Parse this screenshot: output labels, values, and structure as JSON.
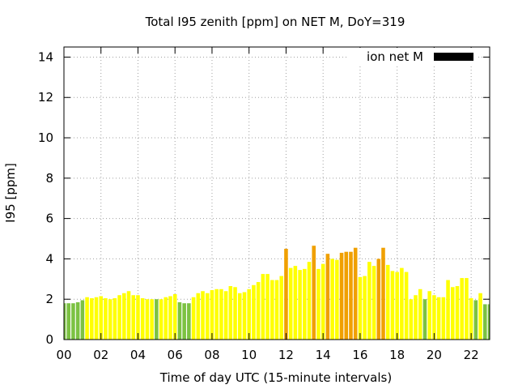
{
  "chart_data": {
    "type": "bar",
    "title": "Total I95 zenith [ppm] on NET M, DoY=319",
    "xlabel": "Time of day UTC (15-minute intervals)",
    "ylabel": "I95 [ppm]",
    "xlim": [
      0,
      23
    ],
    "ylim": [
      0,
      14.5
    ],
    "x_ticks": [
      "00",
      "02",
      "04",
      "06",
      "08",
      "10",
      "12",
      "14",
      "16",
      "18",
      "20",
      "22"
    ],
    "y_ticks": [
      "0",
      "2",
      "4",
      "6",
      "8",
      "10",
      "12",
      "14"
    ],
    "grid": true,
    "legend": {
      "label": "ion net M",
      "position": "top-right",
      "color": "#000000"
    },
    "colors": {
      "green": "#7cc242",
      "yellow": "#ffff00",
      "orange": "#f0a000"
    },
    "x_start_hour": 0,
    "interval_hours": 0.25,
    "values": [
      1.8,
      1.8,
      1.8,
      1.85,
      1.95,
      2.1,
      2.05,
      2.1,
      2.15,
      2.05,
      2.0,
      2.05,
      2.2,
      2.3,
      2.4,
      2.2,
      2.2,
      2.05,
      2.0,
      2.0,
      2.0,
      2.0,
      2.1,
      2.15,
      2.25,
      1.85,
      1.8,
      1.8,
      2.1,
      2.3,
      2.4,
      2.3,
      2.45,
      2.5,
      2.5,
      2.4,
      2.65,
      2.6,
      2.3,
      2.35,
      2.5,
      2.7,
      2.85,
      3.25,
      3.25,
      2.95,
      2.95,
      3.15,
      4.5,
      3.55,
      3.65,
      3.45,
      3.5,
      3.85,
      4.65,
      3.5,
      3.75,
      4.25,
      4.0,
      3.95,
      4.3,
      4.35,
      4.35,
      4.55,
      3.1,
      3.15,
      3.85,
      3.65,
      4.0,
      4.55,
      3.7,
      3.4,
      3.35,
      3.55,
      3.35,
      2.0,
      2.2,
      2.5,
      2.0,
      2.4,
      2.2,
      2.1,
      2.1,
      2.95,
      2.6,
      2.65,
      3.05,
      3.05,
      2.05,
      1.95,
      2.3,
      1.75,
      1.75,
      1.75
    ],
    "categories": [
      "G",
      "G",
      "G",
      "G",
      "G",
      "Y",
      "Y",
      "Y",
      "Y",
      "Y",
      "Y",
      "Y",
      "Y",
      "Y",
      "Y",
      "Y",
      "Y",
      "Y",
      "Y",
      "Y",
      "G",
      "Y",
      "Y",
      "Y",
      "Y",
      "G",
      "G",
      "G",
      "Y",
      "Y",
      "Y",
      "Y",
      "Y",
      "Y",
      "Y",
      "Y",
      "Y",
      "Y",
      "Y",
      "Y",
      "Y",
      "Y",
      "Y",
      "Y",
      "Y",
      "Y",
      "Y",
      "Y",
      "O",
      "Y",
      "Y",
      "Y",
      "Y",
      "Y",
      "O",
      "Y",
      "Y",
      "O",
      "Y",
      "Y",
      "O",
      "O",
      "O",
      "O",
      "Y",
      "Y",
      "Y",
      "Y",
      "O",
      "O",
      "Y",
      "Y",
      "Y",
      "Y",
      "Y",
      "Y",
      "Y",
      "Y",
      "G",
      "Y",
      "Y",
      "Y",
      "Y",
      "Y",
      "Y",
      "Y",
      "Y",
      "Y",
      "Y",
      "G",
      "Y",
      "G",
      "G",
      "G"
    ]
  }
}
